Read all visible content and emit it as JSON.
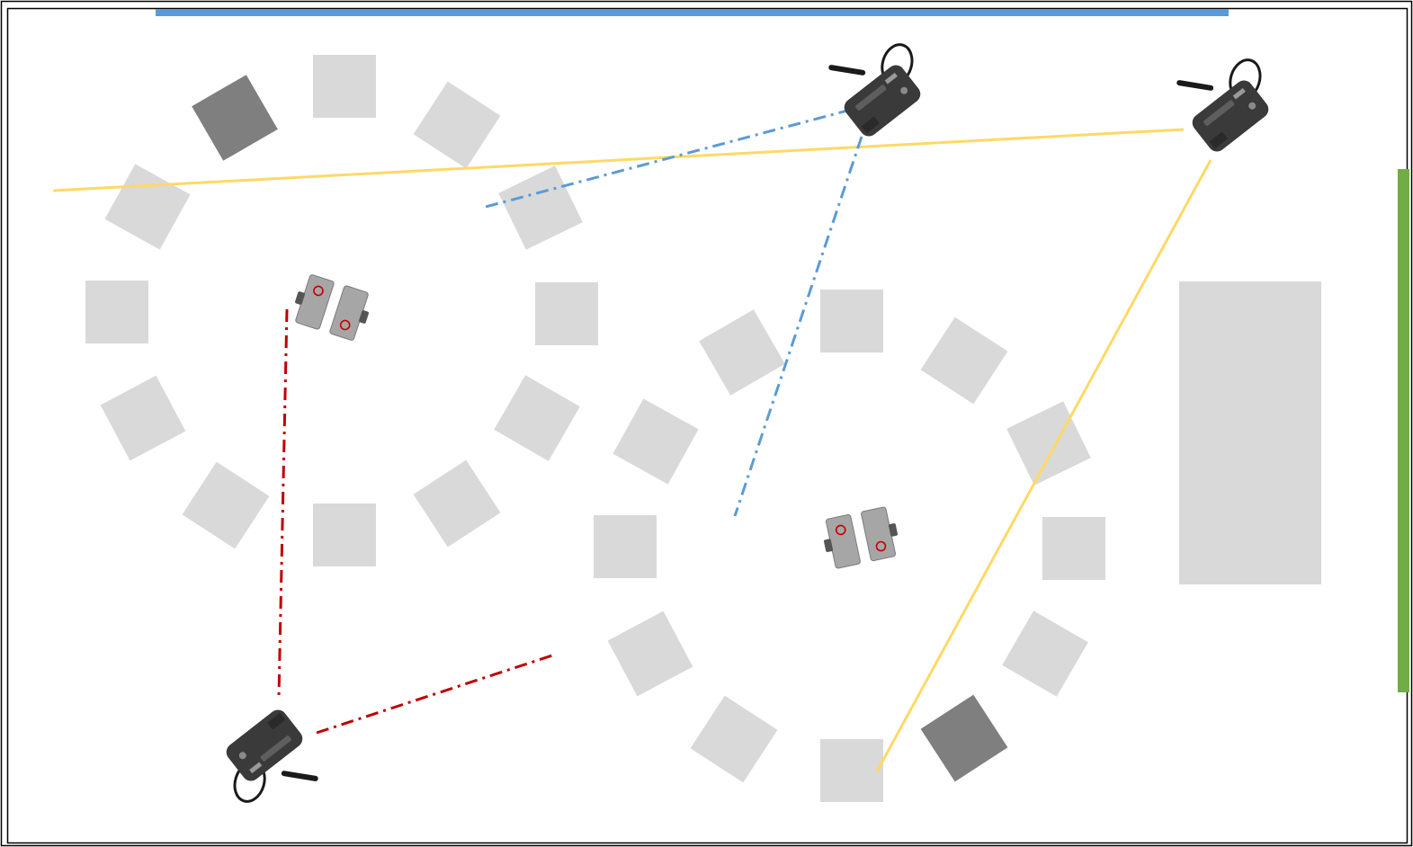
{
  "colors": {
    "background": "#ffffff",
    "frame": "#000000",
    "top_wall": "#5b9bd5",
    "right_wall": "#70ad47",
    "obstacle_light": "#d9d9d9",
    "obstacle_dark": "#7f7f7f",
    "table": "#d9d9d9",
    "camera_body": "#3a3a3a",
    "camera_strap": "#1a1a1a",
    "robot_body": "#a6a6a6",
    "robot_mark": "#c00000",
    "yellow_ray": "#ffd966",
    "blue_ray": "#5b9bd5",
    "red_ray": "#c00000"
  },
  "scene": {
    "walls": [
      {
        "name": "top-wall",
        "color_key": "top_wall"
      },
      {
        "name": "right-wall",
        "color_key": "right_wall"
      }
    ],
    "obstacle_clusters": [
      {
        "name": "left-circle",
        "count": 12,
        "dark_count": 1
      },
      {
        "name": "right-circle",
        "count": 12,
        "dark_count": 1
      }
    ],
    "tables": 1,
    "cameras": [
      {
        "name": "camera-top-center",
        "icon": "camera-icon"
      },
      {
        "name": "camera-top-right",
        "icon": "camera-icon"
      },
      {
        "name": "camera-bottom-left",
        "icon": "camera-icon"
      }
    ],
    "robots": [
      {
        "name": "robot-left",
        "icon": "robot-icon"
      },
      {
        "name": "robot-right",
        "icon": "robot-icon"
      }
    ],
    "rays": [
      {
        "name": "yellow-ray-horizontal",
        "color_key": "yellow_ray",
        "style": "solid"
      },
      {
        "name": "yellow-ray-diagonal",
        "color_key": "yellow_ray",
        "style": "solid"
      },
      {
        "name": "blue-ray-short",
        "color_key": "blue_ray",
        "style": "dash-dot"
      },
      {
        "name": "blue-ray-long",
        "color_key": "blue_ray",
        "style": "dash-dot"
      },
      {
        "name": "red-ray-vertical",
        "color_key": "red_ray",
        "style": "dash-dot"
      },
      {
        "name": "red-ray-diagonal",
        "color_key": "red_ray",
        "style": "dash-dot"
      }
    ]
  }
}
